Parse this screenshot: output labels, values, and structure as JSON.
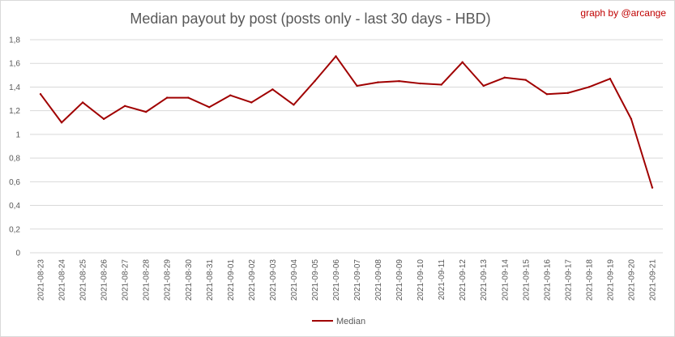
{
  "chart_data": {
    "type": "line",
    "title": "Median payout by post (posts only - last 30 days - HBD)",
    "credit": "graph by @arcange",
    "xlabel": "",
    "ylabel": "",
    "ylim": [
      0,
      1.8
    ],
    "y_ticks": [
      "0",
      "0,2",
      "0,4",
      "0,6",
      "0,8",
      "1",
      "1,2",
      "1,4",
      "1,6",
      "1,8"
    ],
    "y_tick_values": [
      0,
      0.2,
      0.4,
      0.6,
      0.8,
      1.0,
      1.2,
      1.4,
      1.6,
      1.8
    ],
    "grid": true,
    "legend_position": "bottom",
    "categories": [
      "2021-08-23",
      "2021-08-24",
      "2021-08-25",
      "2021-08-26",
      "2021-08-27",
      "2021-08-28",
      "2021-08-29",
      "2021-08-30",
      "2021-08-31",
      "2021-09-01",
      "2021-09-02",
      "2021-09-03",
      "2021-09-04",
      "2021-09-05",
      "2021-09-06",
      "2021-09-07",
      "2021-09-08",
      "2021-09-09",
      "2021-09-10",
      "2021-09-11",
      "2021-09-12",
      "2021-09-13",
      "2021-09-14",
      "2021-09-15",
      "2021-09-16",
      "2021-09-17",
      "2021-09-18",
      "2021-09-19",
      "2021-09-20",
      "2021-09-21"
    ],
    "series": [
      {
        "name": "Median",
        "color": "#a00000",
        "values": [
          1.34,
          1.1,
          1.27,
          1.13,
          1.24,
          1.19,
          1.31,
          1.31,
          1.23,
          1.33,
          1.27,
          1.38,
          1.25,
          1.45,
          1.66,
          1.41,
          1.44,
          1.45,
          1.43,
          1.42,
          1.61,
          1.41,
          1.48,
          1.46,
          1.34,
          1.35,
          1.4,
          1.47,
          1.13,
          0.55
        ]
      }
    ]
  }
}
